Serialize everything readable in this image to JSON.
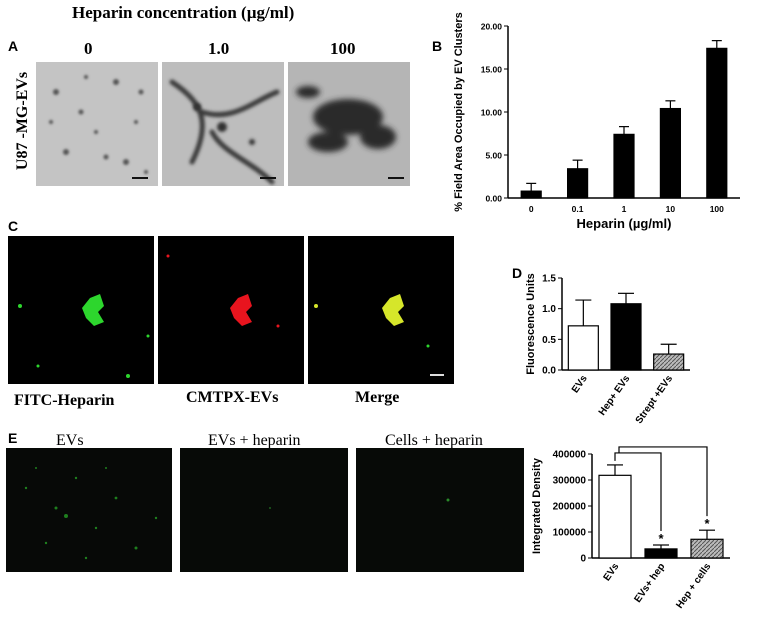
{
  "panel_a": {
    "letter": "A",
    "header": "Heparin concentration (µg/ml)",
    "row_label": "U87 -MG-EVs",
    "columns": [
      "0",
      "1.0",
      "100"
    ]
  },
  "panel_b": {
    "letter": "B"
  },
  "panel_c": {
    "letter": "C",
    "labels": [
      "FITC-Heparin",
      "CMTPX-EVs",
      "Merge"
    ]
  },
  "panel_d": {
    "letter": "D"
  },
  "panel_e": {
    "letter": "E",
    "labels": [
      "EVs",
      "EVs + heparin",
      "Cells + heparin"
    ]
  },
  "colors": {
    "green": "#2dd62d",
    "red": "#e8141e",
    "yellow": "#d6e62a"
  },
  "chart_data": [
    {
      "id": "B",
      "type": "bar",
      "categories": [
        "0",
        "0.1",
        "1",
        "10",
        "100"
      ],
      "values": [
        0.8,
        3.4,
        7.4,
        10.4,
        17.4
      ],
      "errors": [
        0.9,
        1.0,
        0.9,
        0.9,
        0.9
      ],
      "xlabel": "Heparin (µg/ml)",
      "ylabel": "% Field Area Occupied by EV Clusters",
      "ylim": [
        0,
        20
      ],
      "yticks": [
        "0.00",
        "5.00",
        "10.00",
        "15.00",
        "20.00"
      ],
      "bar_color": "#000000"
    },
    {
      "id": "D",
      "type": "bar",
      "categories": [
        "EVs",
        "Hep+ EVs",
        "Strept +EVs"
      ],
      "values": [
        0.72,
        1.08,
        0.26
      ],
      "errors": [
        0.42,
        0.17,
        0.16
      ],
      "ylabel": "Fluorescence Units",
      "ylim": [
        0,
        1.5
      ],
      "yticks": [
        "0.0",
        "0.5",
        "1.0",
        "1.5"
      ],
      "bar_styles": [
        "white",
        "black",
        "hatched"
      ]
    },
    {
      "id": "E",
      "type": "bar",
      "categories": [
        "EVs",
        "EVs+ hep",
        "Hep + cells"
      ],
      "values": [
        318000,
        35000,
        72000
      ],
      "errors": [
        40000,
        15000,
        35000
      ],
      "ylabel": "Integrated Density",
      "ylim": [
        0,
        400000
      ],
      "yticks": [
        "0",
        "100000",
        "200000",
        "300000",
        "400000"
      ],
      "bar_styles": [
        "white",
        "black",
        "hatched"
      ],
      "significance": [
        "",
        "*",
        "*"
      ]
    }
  ]
}
